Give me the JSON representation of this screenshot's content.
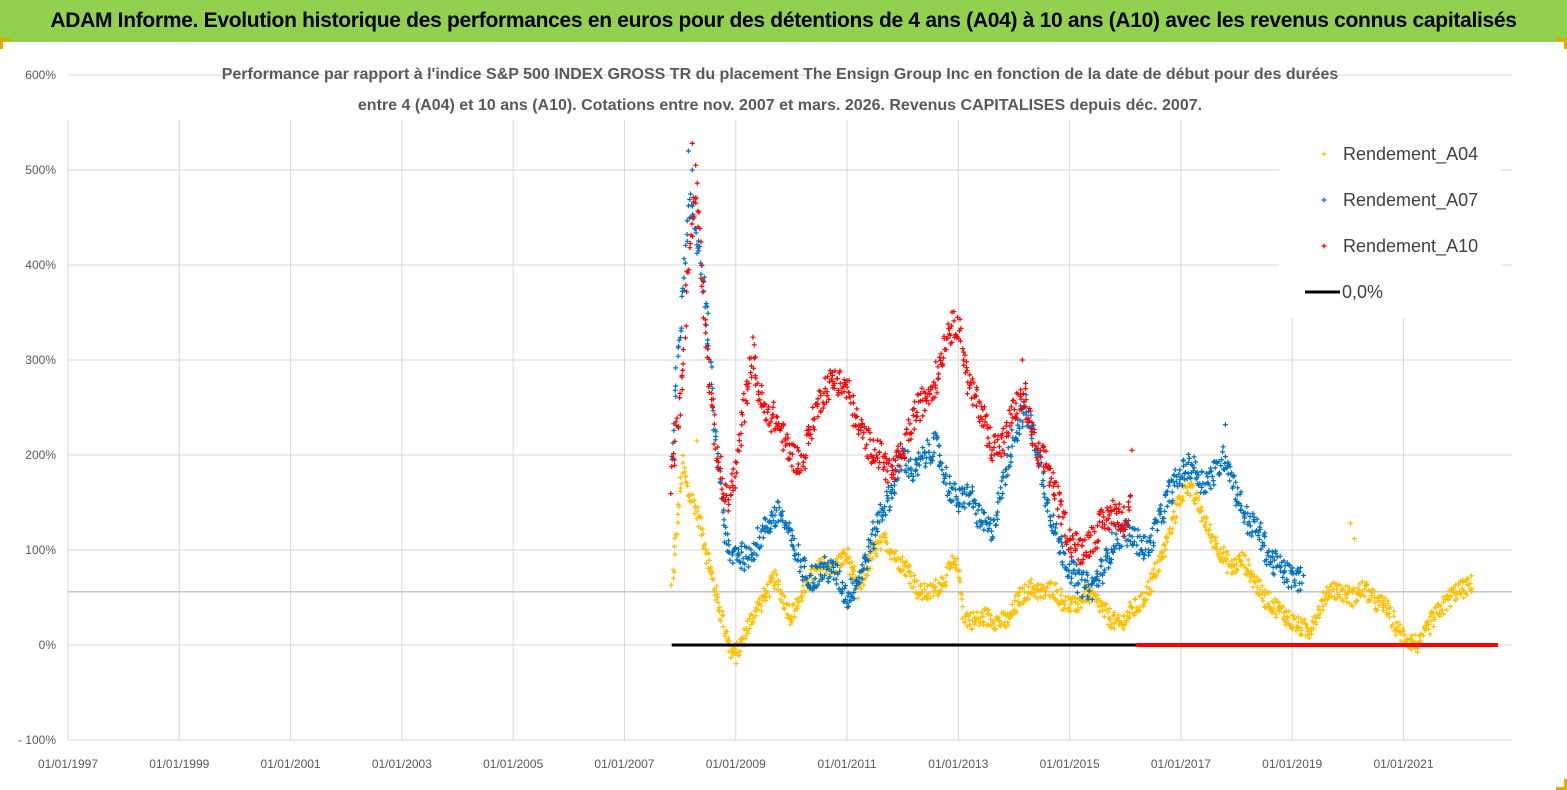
{
  "header": {
    "title": "ADAM Informe. Evolution historique des performances en euros pour des détentions de 4 ans (A04) à 10 ans (A10) avec les revenus connus capitalisés"
  },
  "colors": {
    "banner": "#92d050",
    "a04": "#ffc000",
    "a07": "#0070c0",
    "a10": "#ff0000",
    "zero_line": "#000000",
    "zero_line_recent": "#ff0000",
    "grid": "#d9d9d9",
    "reference_line": "#bfbfbf"
  },
  "chart_data": {
    "type": "scatter",
    "title_line1": "Performance par rapport à l'indice S&P 500 INDEX GROSS TR  du placement The Ensign Group Inc en fonction de la date de début pour des durées",
    "title_line2": "entre 4 (A04) et 10 ans (A10). Cotations entre nov. 2007 et mars. 2026. Revenus CAPITALISES depuis déc. 2007.",
    "x_axis": {
      "type": "date",
      "min": "1997-01-01",
      "max": "2022-12-31",
      "tick_labels": [
        "01/01/1997",
        "01/01/1999",
        "01/01/2001",
        "01/01/2003",
        "01/01/2005",
        "01/01/2007",
        "01/01/2009",
        "01/01/2011",
        "01/01/2013",
        "01/01/2015",
        "01/01/2017",
        "01/01/2019",
        "01/01/2021"
      ],
      "tick_years": [
        1997,
        1999,
        2001,
        2003,
        2005,
        2007,
        2009,
        2011,
        2013,
        2015,
        2017,
        2019,
        2021
      ]
    },
    "y_axis": {
      "min": -100,
      "max": 600,
      "unit": "%",
      "ticks": [
        -100,
        0,
        100,
        200,
        300,
        400,
        500,
        600
      ],
      "tick_labels": [
        "- 100%",
        "0%",
        "100%",
        "200%",
        "300%",
        "400%",
        "500%",
        "600%"
      ]
    },
    "reference_line_y": 56,
    "legend": {
      "position": "top-right",
      "items": [
        "Rendement_A04",
        "Rendement_A07",
        "Rendement_A10",
        "0,0%"
      ]
    },
    "zero_line": {
      "start": 2007.85,
      "end": 2022.7,
      "color_change_at": 2016.2
    },
    "series": [
      {
        "name": "Rendement_A04",
        "color": "#ffc000",
        "spread": 10,
        "points": [
          [
            2007.85,
            60
          ],
          [
            2007.95,
            130
          ],
          [
            2008.05,
            190
          ],
          [
            2008.15,
            160
          ],
          [
            2008.25,
            150
          ],
          [
            2008.35,
            130
          ],
          [
            2008.5,
            90
          ],
          [
            2008.62,
            60
          ],
          [
            2008.75,
            30
          ],
          [
            2008.9,
            -5
          ],
          [
            2009.0,
            -12
          ],
          [
            2009.15,
            10
          ],
          [
            2009.3,
            30
          ],
          [
            2009.5,
            50
          ],
          [
            2009.7,
            70
          ],
          [
            2009.85,
            50
          ],
          [
            2010.0,
            30
          ],
          [
            2010.2,
            55
          ],
          [
            2010.4,
            75
          ],
          [
            2010.6,
            85
          ],
          [
            2010.75,
            80
          ],
          [
            2010.9,
            90
          ],
          [
            2011.0,
            95
          ],
          [
            2011.2,
            55
          ],
          [
            2011.35,
            80
          ],
          [
            2011.5,
            100
          ],
          [
            2011.7,
            110
          ],
          [
            2011.9,
            90
          ],
          [
            2012.1,
            80
          ],
          [
            2012.3,
            55
          ],
          [
            2012.5,
            55
          ],
          [
            2012.7,
            65
          ],
          [
            2012.9,
            85
          ],
          [
            2013.0,
            80
          ],
          [
            2013.1,
            30
          ],
          [
            2013.3,
            25
          ],
          [
            2013.5,
            30
          ],
          [
            2013.7,
            25
          ],
          [
            2013.9,
            25
          ],
          [
            2014.1,
            50
          ],
          [
            2014.3,
            60
          ],
          [
            2014.5,
            55
          ],
          [
            2014.7,
            60
          ],
          [
            2014.9,
            45
          ],
          [
            2015.1,
            40
          ],
          [
            2015.3,
            55
          ],
          [
            2015.5,
            45
          ],
          [
            2015.7,
            30
          ],
          [
            2015.9,
            20
          ],
          [
            2016.1,
            35
          ],
          [
            2016.3,
            45
          ],
          [
            2016.5,
            70
          ],
          [
            2016.7,
            100
          ],
          [
            2016.9,
            140
          ],
          [
            2017.1,
            170
          ],
          [
            2017.3,
            150
          ],
          [
            2017.5,
            120
          ],
          [
            2017.7,
            100
          ],
          [
            2017.9,
            80
          ],
          [
            2018.1,
            90
          ],
          [
            2018.3,
            70
          ],
          [
            2018.5,
            50
          ],
          [
            2018.7,
            40
          ],
          [
            2018.9,
            30
          ],
          [
            2019.1,
            20
          ],
          [
            2019.3,
            15
          ],
          [
            2019.5,
            40
          ],
          [
            2019.7,
            60
          ],
          [
            2019.9,
            55
          ],
          [
            2020.1,
            50
          ],
          [
            2020.3,
            60
          ],
          [
            2020.5,
            45
          ],
          [
            2020.7,
            40
          ],
          [
            2020.9,
            15
          ],
          [
            2021.1,
            5
          ],
          [
            2021.3,
            0
          ],
          [
            2021.5,
            25
          ],
          [
            2021.7,
            40
          ],
          [
            2021.9,
            55
          ],
          [
            2022.1,
            60
          ],
          [
            2022.25,
            65
          ]
        ],
        "outliers": [
          [
            2020.05,
            128
          ],
          [
            2020.12,
            112
          ],
          [
            2008.3,
            215
          ]
        ]
      },
      {
        "name": "Rendement_A07",
        "color": "#0070c0",
        "spread": 14,
        "points": [
          [
            2007.85,
            190
          ],
          [
            2007.95,
            300
          ],
          [
            2008.05,
            370
          ],
          [
            2008.12,
            420
          ],
          [
            2008.2,
            470
          ],
          [
            2008.3,
            430
          ],
          [
            2008.4,
            390
          ],
          [
            2008.5,
            330
          ],
          [
            2008.6,
            240
          ],
          [
            2008.7,
            180
          ],
          [
            2008.8,
            120
          ],
          [
            2008.9,
            90
          ],
          [
            2009.0,
            100
          ],
          [
            2009.2,
            90
          ],
          [
            2009.4,
            110
          ],
          [
            2009.6,
            130
          ],
          [
            2009.8,
            140
          ],
          [
            2010.0,
            110
          ],
          [
            2010.2,
            80
          ],
          [
            2010.4,
            70
          ],
          [
            2010.6,
            80
          ],
          [
            2010.8,
            75
          ],
          [
            2011.0,
            50
          ],
          [
            2011.2,
            70
          ],
          [
            2011.4,
            100
          ],
          [
            2011.6,
            140
          ],
          [
            2011.8,
            160
          ],
          [
            2012.0,
            200
          ],
          [
            2012.2,
            180
          ],
          [
            2012.4,
            200
          ],
          [
            2012.6,
            210
          ],
          [
            2012.8,
            170
          ],
          [
            2013.0,
            150
          ],
          [
            2013.2,
            160
          ],
          [
            2013.4,
            130
          ],
          [
            2013.6,
            120
          ],
          [
            2013.8,
            170
          ],
          [
            2014.0,
            220
          ],
          [
            2014.2,
            250
          ],
          [
            2014.4,
            210
          ],
          [
            2014.6,
            150
          ],
          [
            2014.8,
            110
          ],
          [
            2015.0,
            80
          ],
          [
            2015.2,
            65
          ],
          [
            2015.4,
            60
          ],
          [
            2015.6,
            80
          ],
          [
            2015.8,
            110
          ],
          [
            2016.0,
            120
          ],
          [
            2016.2,
            110
          ],
          [
            2016.4,
            100
          ],
          [
            2016.6,
            130
          ],
          [
            2016.8,
            160
          ],
          [
            2017.0,
            180
          ],
          [
            2017.2,
            190
          ],
          [
            2017.4,
            170
          ],
          [
            2017.6,
            180
          ],
          [
            2017.8,
            200
          ],
          [
            2018.0,
            160
          ],
          [
            2018.2,
            130
          ],
          [
            2018.4,
            120
          ],
          [
            2018.6,
            90
          ],
          [
            2018.8,
            80
          ],
          [
            2019.0,
            70
          ],
          [
            2019.2,
            70
          ]
        ],
        "outliers": [
          [
            2008.15,
            520
          ],
          [
            2008.22,
            500
          ],
          [
            2017.8,
            232
          ]
        ]
      },
      {
        "name": "Rendement_A10",
        "color": "#ff0000",
        "spread": 16,
        "points": [
          [
            2007.85,
            170
          ],
          [
            2007.95,
            230
          ],
          [
            2008.05,
            290
          ],
          [
            2008.12,
            380
          ],
          [
            2008.2,
            440
          ],
          [
            2008.3,
            480
          ],
          [
            2008.38,
            400
          ],
          [
            2008.45,
            340
          ],
          [
            2008.55,
            260
          ],
          [
            2008.65,
            210
          ],
          [
            2008.75,
            170
          ],
          [
            2008.85,
            150
          ],
          [
            2009.0,
            180
          ],
          [
            2009.1,
            230
          ],
          [
            2009.2,
            270
          ],
          [
            2009.3,
            310
          ],
          [
            2009.4,
            270
          ],
          [
            2009.55,
            240
          ],
          [
            2009.7,
            240
          ],
          [
            2009.85,
            220
          ],
          [
            2010.0,
            200
          ],
          [
            2010.2,
            190
          ],
          [
            2010.4,
            240
          ],
          [
            2010.6,
            270
          ],
          [
            2010.8,
            280
          ],
          [
            2011.0,
            270
          ],
          [
            2011.2,
            230
          ],
          [
            2011.4,
            210
          ],
          [
            2011.6,
            200
          ],
          [
            2011.8,
            180
          ],
          [
            2012.0,
            200
          ],
          [
            2012.2,
            240
          ],
          [
            2012.4,
            260
          ],
          [
            2012.6,
            280
          ],
          [
            2012.8,
            330
          ],
          [
            2013.0,
            340
          ],
          [
            2013.2,
            270
          ],
          [
            2013.4,
            250
          ],
          [
            2013.6,
            210
          ],
          [
            2013.8,
            210
          ],
          [
            2014.0,
            250
          ],
          [
            2014.2,
            260
          ],
          [
            2014.4,
            200
          ],
          [
            2014.6,
            190
          ],
          [
            2014.8,
            150
          ],
          [
            2015.0,
            110
          ],
          [
            2015.2,
            100
          ],
          [
            2015.4,
            110
          ],
          [
            2015.6,
            130
          ],
          [
            2015.8,
            140
          ],
          [
            2016.0,
            130
          ],
          [
            2016.1,
            170
          ]
        ],
        "outliers": [
          [
            2008.22,
            528
          ],
          [
            2008.28,
            505
          ],
          [
            2016.12,
            205
          ],
          [
            2014.15,
            300
          ]
        ]
      }
    ]
  }
}
